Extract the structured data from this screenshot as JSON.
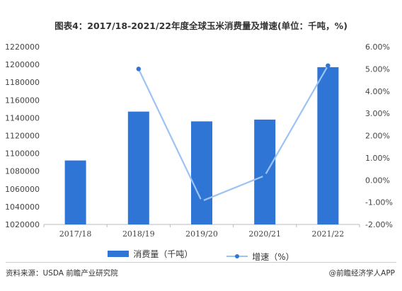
{
  "title": "图表4：2017/18-2021/22年度全球玉米消费量及增速(单位：千吨，%)",
  "source": "资料来源：USDA 前瞻产业研究院",
  "brand": "@前瞻经济学人APP",
  "colors": {
    "bar": "#2f75d6",
    "line": "#9cc3f3",
    "marker": "#2f75d6"
  },
  "chart_data": {
    "type": "bar+line",
    "categories": [
      "2017/18",
      "2018/19",
      "2019/20",
      "2020/21",
      "2021/22"
    ],
    "series": [
      {
        "name": "消费量（千吨）",
        "type": "bar",
        "axis": "left",
        "values": [
          1092000,
          1147000,
          1136000,
          1138000,
          1197000
        ]
      },
      {
        "name": "增速（%）",
        "type": "line",
        "axis": "right",
        "values": [
          null,
          5.0,
          -0.95,
          0.2,
          5.15
        ]
      }
    ],
    "left_axis": {
      "min": 1020000,
      "max": 1220000,
      "step": 20000,
      "ticks": [
        "1020000",
        "1040000",
        "1060000",
        "1080000",
        "1100000",
        "1120000",
        "1140000",
        "1160000",
        "1180000",
        "1200000",
        "1220000"
      ]
    },
    "right_axis": {
      "min": -2,
      "max": 6,
      "step": 1,
      "ticks": [
        "-2.00%",
        "-1.00%",
        "0.00%",
        "1.00%",
        "2.00%",
        "3.00%",
        "4.00%",
        "5.00%",
        "6.00%"
      ]
    },
    "legend_position": "bottom",
    "grid": false
  }
}
